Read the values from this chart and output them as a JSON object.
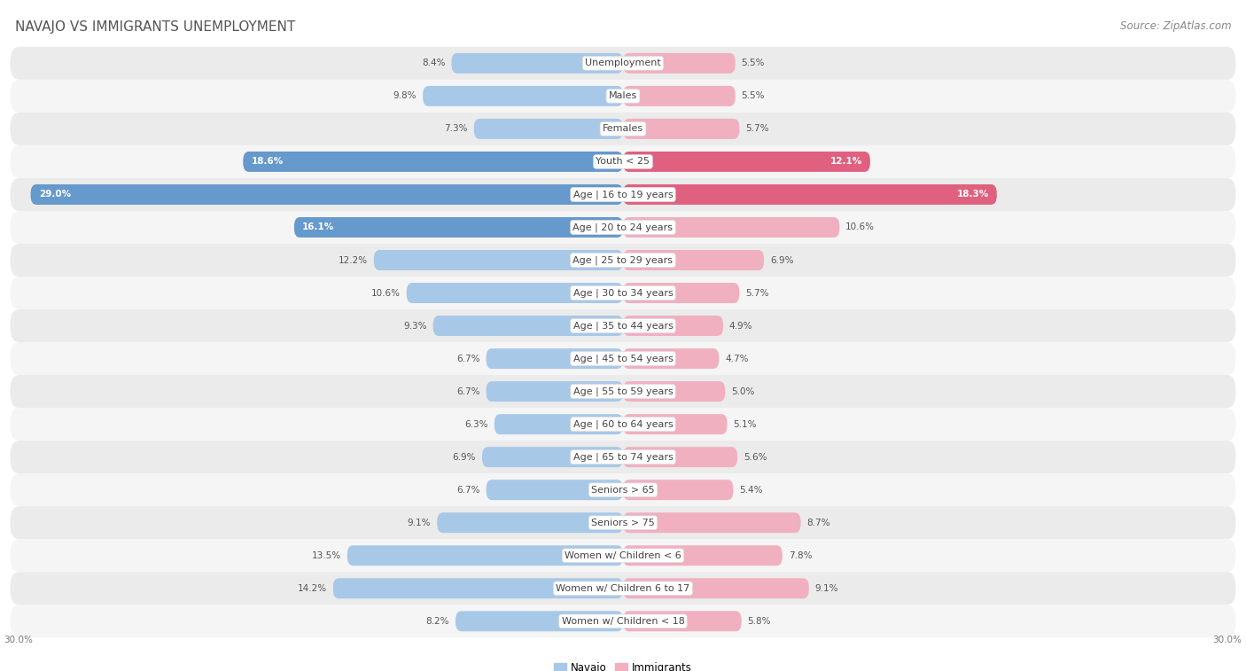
{
  "title": "NAVAJO VS IMMIGRANTS UNEMPLOYMENT",
  "source": "Source: ZipAtlas.com",
  "categories": [
    "Unemployment",
    "Males",
    "Females",
    "Youth < 25",
    "Age | 16 to 19 years",
    "Age | 20 to 24 years",
    "Age | 25 to 29 years",
    "Age | 30 to 34 years",
    "Age | 35 to 44 years",
    "Age | 45 to 54 years",
    "Age | 55 to 59 years",
    "Age | 60 to 64 years",
    "Age | 65 to 74 years",
    "Seniors > 65",
    "Seniors > 75",
    "Women w/ Children < 6",
    "Women w/ Children 6 to 17",
    "Women w/ Children < 18"
  ],
  "navajo": [
    8.4,
    9.8,
    7.3,
    18.6,
    29.0,
    16.1,
    12.2,
    10.6,
    9.3,
    6.7,
    6.7,
    6.3,
    6.9,
    6.7,
    9.1,
    13.5,
    14.2,
    8.2
  ],
  "immigrants": [
    5.5,
    5.5,
    5.7,
    12.1,
    18.3,
    10.6,
    6.9,
    5.7,
    4.9,
    4.7,
    5.0,
    5.1,
    5.6,
    5.4,
    8.7,
    7.8,
    9.1,
    5.8
  ],
  "navajo_color_normal": "#a8c8e8",
  "navajo_color_highlight": "#6699cc",
  "immigrants_color_normal": "#f0b0c0",
  "immigrants_color_highlight": "#e06080",
  "row_bg_alt": "#ebebeb",
  "row_bg_main": "#f5f5f5",
  "max_val": 30.0,
  "legend_navajo": "Navajo",
  "legend_immigrants": "Immigrants",
  "axis_label_left": "30.0%",
  "axis_label_right": "30.0%",
  "title_fontsize": 11,
  "source_fontsize": 8.5,
  "cat_fontsize": 8,
  "val_fontsize": 7.5,
  "legend_fontsize": 8.5,
  "nav_highlight_threshold": 16.0,
  "imm_highlight_threshold": 11.0
}
